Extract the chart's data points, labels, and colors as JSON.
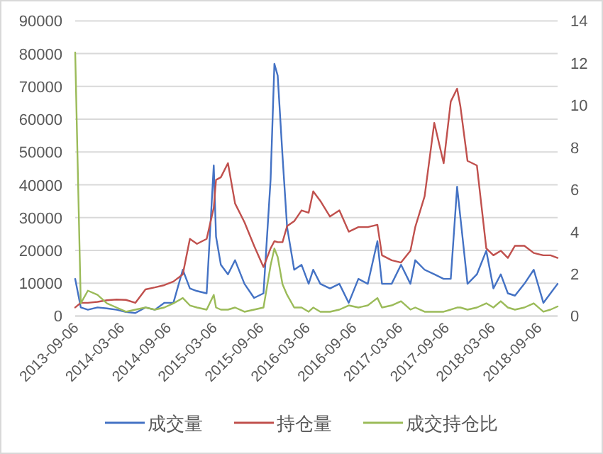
{
  "chart_data": {
    "type": "line",
    "x": [
      "2013-09-06",
      "2013-09-28",
      "2013-10-26",
      "2013-12-03",
      "2014-01-09",
      "2014-02-16",
      "2014-03-25",
      "2014-05-01",
      "2014-06-10",
      "2014-07-17",
      "2014-08-23",
      "2014-09-28",
      "2014-11-04",
      "2014-12-02",
      "2014-12-30",
      "2015-02-06",
      "2015-03-06",
      "2015-03-15",
      "2015-04-03",
      "2015-05-01",
      "2015-05-29",
      "2015-07-05",
      "2015-08-12",
      "2015-09-18",
      "2015-10-16",
      "2015-10-31",
      "2015-11-13",
      "2015-12-02",
      "2015-12-20",
      "2016-01-17",
      "2016-02-15",
      "2016-03-14",
      "2016-04-01",
      "2016-04-29",
      "2016-06-06",
      "2016-07-13",
      "2016-08-19",
      "2016-09-26",
      "2016-11-02",
      "2016-12-10",
      "2016-12-28",
      "2017-02-04",
      "2017-03-13",
      "2017-04-19",
      "2017-05-08",
      "2017-06-14",
      "2017-07-22",
      "2017-08-28",
      "2017-09-25",
      "2017-10-20",
      "2017-11-02",
      "2017-11-30",
      "2018-01-06",
      "2018-02-12",
      "2018-03-12",
      "2018-04-10",
      "2018-05-08",
      "2018-06-05",
      "2018-07-12",
      "2018-08-18",
      "2018-09-25",
      "2018-10-23",
      "2018-11-20"
    ],
    "series": [
      {
        "name": "成交量",
        "color": "#4472c4",
        "values": [
          11300,
          2600,
          1900,
          2600,
          2300,
          1900,
          1200,
          900,
          2600,
          1900,
          4000,
          4000,
          14100,
          8400,
          7600,
          6900,
          45900,
          24200,
          15600,
          12700,
          17000,
          9800,
          5500,
          6900,
          41600,
          76900,
          73300,
          48800,
          27100,
          14100,
          15600,
          9800,
          14100,
          9800,
          8400,
          9800,
          4000,
          11300,
          9800,
          22800,
          9800,
          9800,
          15600,
          9800,
          17000,
          14100,
          12700,
          11300,
          11300,
          39400,
          30000,
          9800,
          12700,
          19900,
          8400,
          12700,
          6900,
          6200,
          9800,
          14100,
          4000,
          6900,
          9800
        ]
      },
      {
        "name": "持仓量",
        "color": "#c0504d",
        "values": [
          2600,
          4000,
          4000,
          4300,
          4800,
          5000,
          4900,
          4000,
          8100,
          8700,
          9400,
          10500,
          12700,
          23500,
          22000,
          23500,
          33000,
          41500,
          42300,
          46600,
          34300,
          28600,
          21400,
          14900,
          20600,
          22800,
          22500,
          22500,
          27400,
          28900,
          32200,
          31500,
          38000,
          35100,
          30300,
          32200,
          25700,
          27100,
          27100,
          27800,
          18500,
          17000,
          16300,
          19900,
          27100,
          36500,
          58900,
          46600,
          65400,
          69300,
          63900,
          47300,
          45900,
          20600,
          18500,
          19900,
          17700,
          21400,
          21400,
          19200,
          18500,
          18500,
          17700
        ]
      },
      {
        "name": "成交持仓比",
        "color": "#9bbb59",
        "axis": "y2",
        "values": [
          12.5,
          0.6,
          1.2,
          1.0,
          0.6,
          0.4,
          0.2,
          0.3,
          0.4,
          0.3,
          0.4,
          0.6,
          0.85,
          0.5,
          0.4,
          0.3,
          1.0,
          0.4,
          0.3,
          0.3,
          0.4,
          0.2,
          0.3,
          0.4,
          2.4,
          3.2,
          2.8,
          1.5,
          1.0,
          0.4,
          0.4,
          0.2,
          0.4,
          0.2,
          0.2,
          0.3,
          0.5,
          0.4,
          0.5,
          0.85,
          0.4,
          0.5,
          0.7,
          0.3,
          0.4,
          0.2,
          0.2,
          0.2,
          0.3,
          0.4,
          0.4,
          0.3,
          0.4,
          0.6,
          0.4,
          0.7,
          0.4,
          0.3,
          0.4,
          0.6,
          0.2,
          0.3,
          0.45
        ]
      }
    ],
    "xlim": [
      "2013-09-06",
      "2018-11-20"
    ],
    "xticks": [
      "2013-09-06",
      "2014-03-06",
      "2014-09-06",
      "2015-03-06",
      "2015-09-06",
      "2016-03-06",
      "2016-09-06",
      "2017-03-06",
      "2017-09-06",
      "2018-03-06",
      "2018-09-06"
    ],
    "ylim": [
      0,
      90000
    ],
    "yticks": [
      0,
      10000,
      20000,
      30000,
      40000,
      50000,
      60000,
      70000,
      80000,
      90000
    ],
    "y2lim": [
      0,
      14
    ],
    "y2ticks": [
      0,
      2,
      4,
      6,
      8,
      10,
      12,
      14
    ],
    "grid": "y",
    "legend": "bottom",
    "marker": "none",
    "line_style": "solid"
  }
}
